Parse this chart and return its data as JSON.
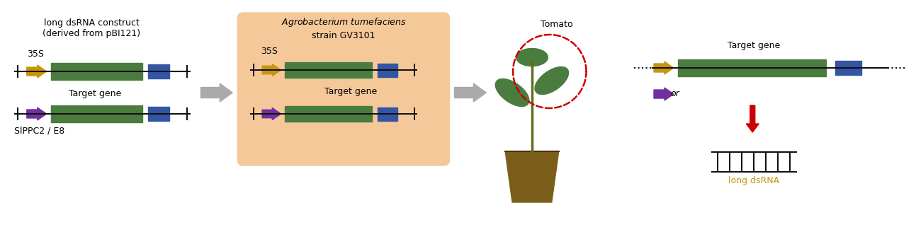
{
  "fig_width": 12.93,
  "fig_height": 3.21,
  "bg_color": "#ffffff",
  "colors": {
    "green_box": "#4a7c3f",
    "blue_box": "#3455a4",
    "gold_arrow": "#c8960c",
    "purple_arrow": "#7030a0",
    "red_arrow": "#cc0000",
    "gray_arrow": "#aaaaaa",
    "orange_bg": "#f5c899",
    "brown_pot": "#7b5e1a",
    "leaf_green": "#4a7c3f",
    "stem_green": "#5a6e2a",
    "dashed_red": "#cc0000",
    "dsrna_gold": "#c8960c",
    "line_color": "#111111"
  },
  "text": {
    "title_left": "long dsRNA construct\n(derived from pBI121)",
    "label_35s_top": "35S",
    "label_target_gene_mid": "Target gene",
    "label_sippc2": "SlPPC2 / E8",
    "label_agro_title": "Agrobacterium tumefaciens\nstrain GV3101",
    "label_35s_agro": "35S",
    "label_target_gene_agro": "Target gene",
    "label_tomato": "Tomato",
    "label_target_gene_right": "Target gene",
    "label_or": "or",
    "label_long_dsrna": "long dsRNA"
  }
}
